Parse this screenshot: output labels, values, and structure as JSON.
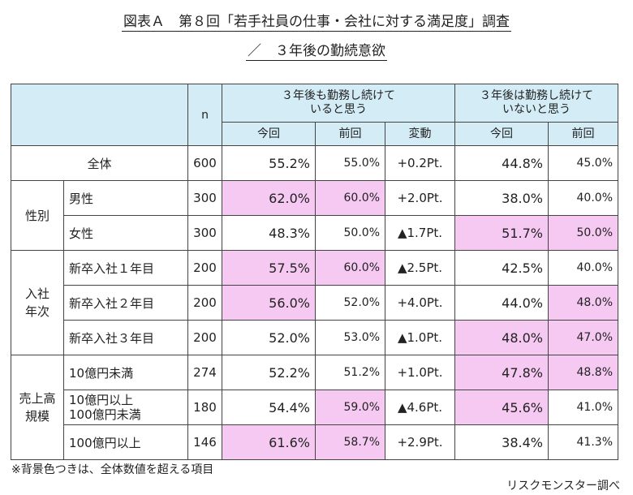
{
  "title_line1": "図表Ａ　第８回「若手社員の仕事・会社に対する満足度」調査",
  "title_line2": "／　３年後の勤続意欲",
  "header": {
    "n": "n",
    "group_stay": "３年後も勤務し続けて\nいると思う",
    "group_leave": "３年後は勤務し続けて\nいないと思う",
    "current": "今回",
    "previous": "前回",
    "change": "変動"
  },
  "groups": {
    "gender": "性別\n",
    "entry_year": "入社\n年次",
    "sales": "売上高\n規模"
  },
  "chart_data": {
    "type": "table",
    "columns": [
      "n",
      "3年後も勤務し続けていると思う 今回",
      "3年後も勤務し続けていると思う 前回",
      "変動",
      "3年後は勤務し続けていないと思う 今回",
      "3年後は勤務し続けていないと思う 前回"
    ],
    "rows": [
      {
        "label": "全体",
        "n": "600",
        "stay_cur": "55.2%",
        "stay_prev": "55.0%",
        "change": "+0.2Pt.",
        "leave_cur": "44.8%",
        "leave_prev": "45.0%",
        "hl": []
      },
      {
        "label": "男性",
        "n": "300",
        "stay_cur": "62.0%",
        "stay_prev": "60.0%",
        "change": "+2.0Pt.",
        "leave_cur": "38.0%",
        "leave_prev": "40.0%",
        "hl": [
          "stay_cur",
          "stay_prev"
        ]
      },
      {
        "label": "女性",
        "n": "300",
        "stay_cur": "48.3%",
        "stay_prev": "50.0%",
        "change": "▲1.7Pt.",
        "leave_cur": "51.7%",
        "leave_prev": "50.0%",
        "hl": [
          "leave_cur",
          "leave_prev"
        ]
      },
      {
        "label": "新卒入社１年目",
        "n": "200",
        "stay_cur": "57.5%",
        "stay_prev": "60.0%",
        "change": "▲2.5Pt.",
        "leave_cur": "42.5%",
        "leave_prev": "40.0%",
        "hl": [
          "stay_cur",
          "stay_prev"
        ]
      },
      {
        "label": "新卒入社２年目",
        "n": "200",
        "stay_cur": "56.0%",
        "stay_prev": "52.0%",
        "change": "+4.0Pt.",
        "leave_cur": "44.0%",
        "leave_prev": "48.0%",
        "hl": [
          "stay_cur",
          "leave_prev"
        ]
      },
      {
        "label": "新卒入社３年目",
        "n": "200",
        "stay_cur": "52.0%",
        "stay_prev": "53.0%",
        "change": "▲1.0Pt.",
        "leave_cur": "48.0%",
        "leave_prev": "47.0%",
        "hl": [
          "leave_cur",
          "leave_prev"
        ]
      },
      {
        "label": "10億円未満",
        "n": "274",
        "stay_cur": "52.2%",
        "stay_prev": "51.2%",
        "change": "+1.0Pt.",
        "leave_cur": "47.8%",
        "leave_prev": "48.8%",
        "hl": [
          "leave_cur",
          "leave_prev"
        ]
      },
      {
        "label": "10億円以上\n100億円未満",
        "n": "180",
        "stay_cur": "54.4%",
        "stay_prev": "59.0%",
        "change": "▲4.6Pt.",
        "leave_cur": "45.6%",
        "leave_prev": "41.0%",
        "hl": [
          "stay_prev",
          "leave_cur"
        ]
      },
      {
        "label": "100億円以上",
        "n": "146",
        "stay_cur": "61.6%",
        "stay_prev": "58.7%",
        "change": "+2.9Pt.",
        "leave_cur": "38.4%",
        "leave_prev": "41.3%",
        "hl": [
          "stay_cur",
          "stay_prev"
        ]
      }
    ]
  },
  "highlight_color": "#f6c9f2",
  "header_color": "#d3ecf6",
  "note": "※背景色つきは、全体数値を超える項目",
  "source": "リスクモンスター調べ"
}
